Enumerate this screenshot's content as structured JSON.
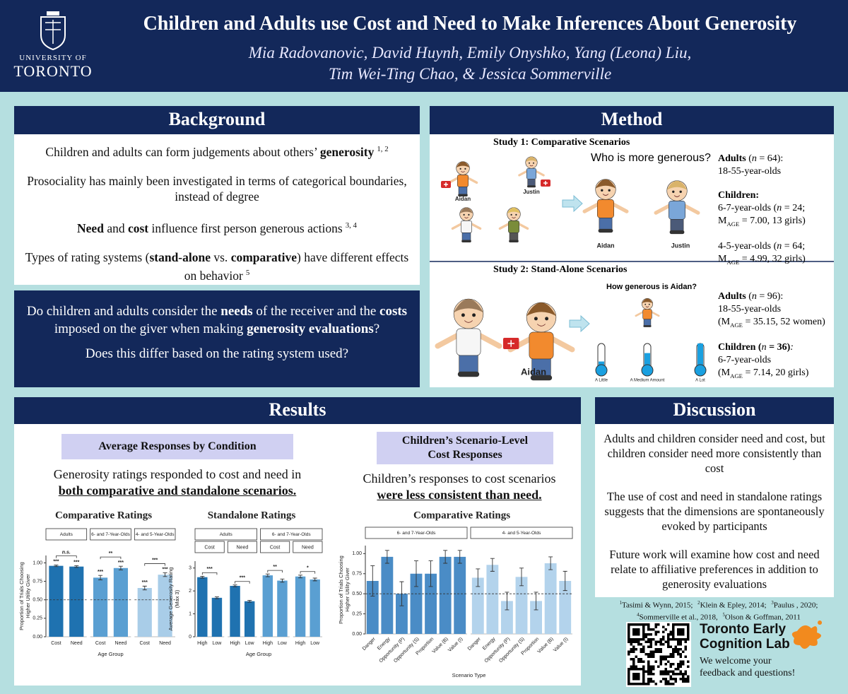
{
  "header": {
    "university": [
      "UNIVERSITY OF",
      "TORONTO"
    ],
    "title": "Children and Adults use Cost and Need to Make Inferences About Generosity",
    "authors": [
      "Mia Radovanovic, David Huynh, Emily Onyshko, Yang (Leona) Liu,",
      "Tim Wei-Ting Chao, & Jessica Sommerville"
    ]
  },
  "background": {
    "heading": "Background",
    "paragraphs": [
      [
        {
          "text": "Children and adults can form judgements about others’ "
        },
        {
          "text": "generosity",
          "bold": true
        },
        {
          "text": "1, 2",
          "sup": true
        }
      ],
      [
        {
          "text": "Prosociality has mainly been investigated in terms of categorical boundaries, instead of degree"
        }
      ],
      [
        {
          "text": "Need",
          "bold": true
        },
        {
          "text": " and "
        },
        {
          "text": "cost",
          "bold": true
        },
        {
          "text": " influence first person generous actions"
        },
        {
          "text": "3, 4",
          "sup": true
        }
      ],
      [
        {
          "text": "Types of rating systems ("
        },
        {
          "text": "stand-alone",
          "bold": true
        },
        {
          "text": " vs. "
        },
        {
          "text": "comparative",
          "bold": true
        },
        {
          "text": ") have different effects on behavior"
        },
        {
          "text": "5",
          "sup": true
        }
      ]
    ]
  },
  "question": {
    "paragraphs": [
      [
        {
          "text": "Do children and adults consider the "
        },
        {
          "text": "needs",
          "bold": true
        },
        {
          "text": " of the receiver and the "
        },
        {
          "text": "costs",
          "bold": true
        },
        {
          "text": " imposed on the giver when making "
        },
        {
          "text": "generosity evaluations",
          "bold": true
        },
        {
          "text": "?"
        }
      ],
      [
        {
          "text": "Does this differ based on the rating system used?"
        }
      ]
    ]
  },
  "method": {
    "heading": "Method",
    "studies": [
      {
        "title": "Study 1: Comparative Scenarios",
        "prompt": "Who is more generous?",
        "names": [
          "Aidan",
          "Justin",
          "Aidan",
          "Justin"
        ],
        "participants": [
          [
            [
              {
                "text": "Adults",
                "bold": true
              },
              {
                "text": " ("
              },
              {
                "text": "n",
                "italic": true
              },
              {
                "text": " = 64):"
              }
            ],
            [
              {
                "text": "18-55-year-olds"
              }
            ]
          ],
          [
            [
              {
                "text": "Children:",
                "bold": true
              }
            ],
            [
              {
                "text": "6-7-year-olds ("
              },
              {
                "text": "n",
                "italic": true
              },
              {
                "text": " = 24;"
              }
            ],
            [
              {
                "text": "M"
              },
              {
                "text": "AGE",
                "sub": true
              },
              {
                "text": " = 7.00, 13 girls)"
              }
            ]
          ],
          [
            [
              {
                "text": "4-5-year-olds ("
              },
              {
                "text": "n",
                "italic": true
              },
              {
                "text": " = 64;"
              }
            ],
            [
              {
                "text": "M"
              },
              {
                "text": "AGE",
                "sub": true
              },
              {
                "text": " = 4.99, 32 girls)"
              }
            ]
          ]
        ]
      },
      {
        "title": "Study 2: Stand-Alone Scenarios",
        "prompt": "How generous is Aidan?",
        "names": [
          "Aidan"
        ],
        "scale": [
          "A Little",
          "A Medium Amount",
          "A Lot"
        ],
        "participants": [
          [
            [
              {
                "text": "Adults",
                "bold": true
              },
              {
                "text": " ("
              },
              {
                "text": "n",
                "italic": true
              },
              {
                "text": " = 96):"
              }
            ],
            [
              {
                "text": "18-55-year-olds"
              }
            ],
            [
              {
                "text": "(M"
              },
              {
                "text": "AGE",
                "sub": true
              },
              {
                "text": " = 35.15, 52 women)"
              }
            ]
          ],
          [
            [
              {
                "text": "Children (",
                "bold": true
              },
              {
                "text": "n",
                "italic": true
              },
              {
                "text": " = 36)",
                "bold": true
              },
              {
                "text": ":",
                "italic": true
              }
            ],
            [
              {
                "text": "6-7-year-olds"
              }
            ],
            [
              {
                "text": "(M"
              },
              {
                "text": "AGE",
                "sub": true
              },
              {
                "text": " = 7.14, 20 girls)"
              }
            ]
          ]
        ]
      }
    ]
  },
  "results": {
    "heading": "Results",
    "left": {
      "subheading": "Average Responses by Condition",
      "text": [
        [
          {
            "text": "Generosity ratings responded to cost and need in"
          }
        ],
        [
          {
            "text": "both comparative and standalone scenarios.",
            "bold": true,
            "underline": true
          }
        ]
      ],
      "charts": [
        {
          "type": "bar",
          "title": "Comparative Ratings",
          "y_label": [
            "Proportion of Trials Choosing",
            "Higher Utility Giver"
          ],
          "x_label": "Age Group",
          "ylim": [
            0,
            1.1
          ],
          "yticks": [
            {
              "value": 0,
              "label": "0.00"
            },
            {
              "value": 0.25,
              "label": "0.25"
            },
            {
              "value": 0.5,
              "label": "0.50"
            },
            {
              "value": 0.75,
              "label": "0.75"
            },
            {
              "value": 1,
              "label": "1.00"
            }
          ],
          "reference_line": 0.5,
          "groups": [
            {
              "name": "Adults",
              "color": "#1f72b0",
              "categories": [
                "Cost",
                "Need"
              ],
              "values": [
                0.96,
                0.95
              ],
              "errors": [
                0.01,
                0.012
              ],
              "significance": [
                "***",
                "***"
              ],
              "comparison": "n.s."
            },
            {
              "name": "6- and 7-Year-Olds",
              "color": "#5a9fd2",
              "categories": [
                "Cost",
                "Need"
              ],
              "values": [
                0.8,
                0.93
              ],
              "errors": [
                0.03,
                0.025
              ],
              "significance": [
                "***",
                "***"
              ],
              "comparison": "**"
            },
            {
              "name": "4- and 5-Year-Olds",
              "color": "#a9cde8",
              "categories": [
                "Cost",
                "Need"
              ],
              "values": [
                0.66,
                0.84
              ],
              "errors": [
                0.025,
                0.025
              ],
              "significance": [
                "***",
                "***"
              ],
              "comparison": "***"
            }
          ]
        },
        {
          "type": "bar",
          "title": "Standalone Ratings",
          "y_label": [
            "Average Generosity Rating",
            "(Max 3)"
          ],
          "x_label": "Age Group",
          "ylim": [
            0,
            3.3
          ],
          "yticks": [
            0,
            1,
            2,
            3
          ],
          "groups": [
            {
              "name": "Adults",
              "color": "#1f72b0",
              "panels": [
                {
                  "name": "Cost",
                  "categories": [
                    "High",
                    "Low"
                  ],
                  "values": [
                    2.6,
                    1.7
                  ],
                  "errors": [
                    0.04,
                    0.04
                  ],
                  "comparison": "***"
                },
                {
                  "name": "Need",
                  "categories": [
                    "High",
                    "Low"
                  ],
                  "values": [
                    2.22,
                    1.55
                  ],
                  "errors": [
                    0.04,
                    0.04
                  ],
                  "comparison": "***"
                }
              ]
            },
            {
              "name": "6- and 7-Year-Olds",
              "color": "#5a9fd2",
              "panels": [
                {
                  "name": "Cost",
                  "categories": [
                    "High",
                    "Low"
                  ],
                  "values": [
                    2.68,
                    2.45
                  ],
                  "errors": [
                    0.06,
                    0.07
                  ],
                  "comparison": "**"
                },
                {
                  "name": "Need",
                  "categories": [
                    "High",
                    "Low"
                  ],
                  "values": [
                    2.63,
                    2.5
                  ],
                  "errors": [
                    0.06,
                    0.06
                  ],
                  "comparison": "*"
                }
              ]
            }
          ]
        }
      ]
    },
    "right": {
      "subheading": [
        "Children’s Scenario-Level",
        "Cost Responses"
      ],
      "text": [
        [
          {
            "text": "Children’s responses to cost scenarios"
          }
        ],
        [
          {
            "text": "were less consistent than need.",
            "bold": true,
            "underline": true
          }
        ]
      ],
      "chart": {
        "type": "bar",
        "title": "Comparative Ratings",
        "y_label": [
          "Proportion of Trials Choosing",
          "Higher Utility Giver"
        ],
        "x_label": "Scenario Type",
        "ylim": [
          0,
          1.1
        ],
        "yticks": [
          {
            "value": 0,
            "label": "0.00"
          },
          {
            "value": 0.25,
            "label": "0.25"
          },
          {
            "value": 0.5,
            "label": "0.50"
          },
          {
            "value": 0.75,
            "label": "0.75"
          },
          {
            "value": 1,
            "label": "1.00"
          }
        ],
        "reference_line": 0.5,
        "groups": [
          {
            "name": "6- and 7-Year-Olds",
            "color": "#4a8cc6",
            "categories": [
              "Danger",
              "Energy",
              "Opportunity (P)",
              "Opportunity (S)",
              "Proportion",
              "Value (B)",
              "Value (I)"
            ],
            "values": [
              0.66,
              0.96,
              0.5,
              0.75,
              0.75,
              0.96,
              0.96
            ],
            "errors": [
              0.19,
              0.08,
              0.15,
              0.16,
              0.16,
              0.08,
              0.08
            ]
          },
          {
            "name": "4- and 5-Year-Olds",
            "color": "#b3d3ec",
            "categories": [
              "Danger",
              "Energy",
              "Opportunity (P)",
              "Opportunity (S)",
              "Proportion",
              "Value (B)",
              "Value (I)"
            ],
            "values": [
              0.7,
              0.86,
              0.41,
              0.71,
              0.41,
              0.88,
              0.66
            ],
            "errors": [
              0.11,
              0.08,
              0.11,
              0.11,
              0.11,
              0.08,
              0.12
            ]
          }
        ]
      }
    }
  },
  "discussion": {
    "heading": "Discussion",
    "paragraphs": [
      "Adults and children consider need and cost, but children consider need more consistently than cost",
      "The use of cost and need in standalone ratings suggests that the dimensions are spontaneously evoked by participants",
      "Future work will examine how cost and need relate to affiliative preferences in addition to generosity evaluations"
    ],
    "references": [
      [
        {
          "text": "1",
          "sup": true
        },
        {
          "text": "Tasimi & Wynn, 2015; "
        },
        {
          "text": "2",
          "sup": true
        },
        {
          "text": "Klein & Epley, 2014;  "
        },
        {
          "text": "3",
          "sup": true
        },
        {
          "text": "Paulus , 2020;"
        }
      ],
      [
        {
          "text": "4",
          "sup": true
        },
        {
          "text": "Sommerville et al., 2018, "
        },
        {
          "text": "5",
          "sup": true
        },
        {
          "text": "Olson & Goffman, 2011"
        }
      ]
    ],
    "lab": {
      "name": [
        "Toronto Early",
        "Cognition Lab"
      ],
      "message": [
        "We welcome your",
        "feedback and questions!"
      ]
    }
  }
}
